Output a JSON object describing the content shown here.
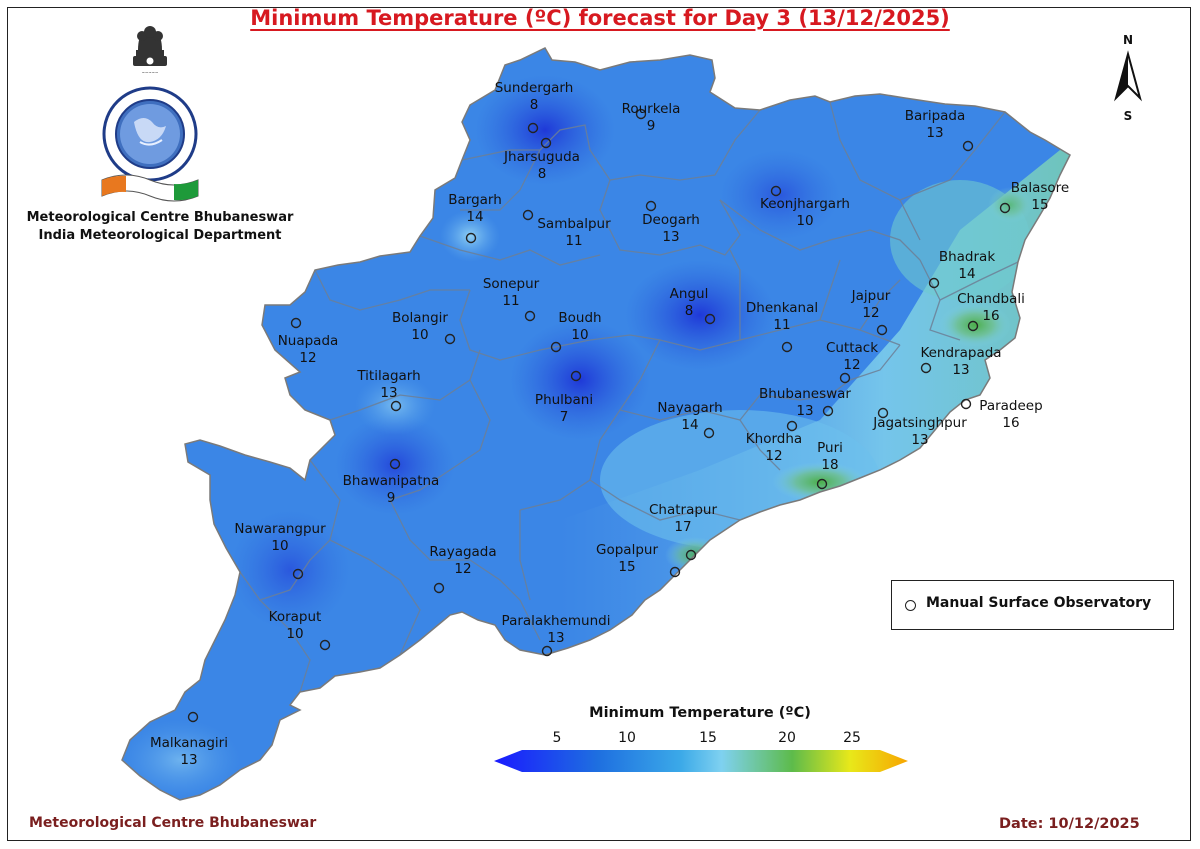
{
  "title": "Minimum Temperature (ºC) forecast for Day 3 (13/12/2025)",
  "organization": {
    "line1": "Meteorological Centre Bhubaneswar",
    "line2": "India Meteorological Department",
    "emblem_icon": "imd-emblem-icon"
  },
  "compass": {
    "north": "N",
    "south": "S"
  },
  "stations": [
    {
      "name": "Sundergarh",
      "value": "8"
    },
    {
      "name": "Rourkela",
      "value": "9"
    },
    {
      "name": "Jharsuguda",
      "value": "8"
    },
    {
      "name": "Baripada",
      "value": "13"
    },
    {
      "name": "Bargarh",
      "value": "14"
    },
    {
      "name": "Sambalpur",
      "value": "11"
    },
    {
      "name": "Deogarh",
      "value": "13"
    },
    {
      "name": "Keonjhargarh",
      "value": "10"
    },
    {
      "name": "Balasore",
      "value": "15"
    },
    {
      "name": "Bhadrak",
      "value": "14"
    },
    {
      "name": "Sonepur",
      "value": "11"
    },
    {
      "name": "Angul",
      "value": "8"
    },
    {
      "name": "Dhenkanal",
      "value": "11"
    },
    {
      "name": "Jajpur",
      "value": "12"
    },
    {
      "name": "Chandbali",
      "value": "16"
    },
    {
      "name": "Bolangir",
      "value": "10"
    },
    {
      "name": "Boudh",
      "value": "10"
    },
    {
      "name": "Nuapada",
      "value": "12"
    },
    {
      "name": "Cuttack",
      "value": "12"
    },
    {
      "name": "Kendrapada",
      "value": "13"
    },
    {
      "name": "Titilagarh",
      "value": "13"
    },
    {
      "name": "Phulbani",
      "value": "7"
    },
    {
      "name": "Bhubaneswar",
      "value": "13"
    },
    {
      "name": "Paradeep",
      "value": "16"
    },
    {
      "name": "Nayagarh",
      "value": "14"
    },
    {
      "name": "Jagatsinghpur",
      "value": "13"
    },
    {
      "name": "Khordha",
      "value": "12"
    },
    {
      "name": "Puri",
      "value": "18"
    },
    {
      "name": "Bhawanipatna",
      "value": "9"
    },
    {
      "name": "Chatrapur",
      "value": "17"
    },
    {
      "name": "Nawarangpur",
      "value": "10"
    },
    {
      "name": "Rayagada",
      "value": "12"
    },
    {
      "name": "Gopalpur",
      "value": "15"
    },
    {
      "name": "Koraput",
      "value": "10"
    },
    {
      "name": "Paralakhemundi",
      "value": "13"
    },
    {
      "name": "Malkanagiri",
      "value": "13"
    }
  ],
  "legend": {
    "marker_label": "Manual Surface Observatory"
  },
  "colorbar": {
    "title": "Minimum Temperature (ºC)",
    "ticks": [
      "5",
      "10",
      "15",
      "20",
      "25"
    ],
    "colors": [
      "#1a1aff",
      "#1e6fe0",
      "#3ba9e8",
      "#7fd1f0",
      "#5dbb4b",
      "#e8e81a",
      "#f7a500"
    ]
  },
  "footer": {
    "left": "Meteorological Centre Bhubaneswar",
    "right": "Date: 10/12/2025"
  },
  "chart_data": {
    "type": "heatmap",
    "title": "Minimum Temperature (ºC) forecast for Day 3 (13/12/2025)",
    "colorbar_range": [
      5,
      25
    ],
    "points": [
      {
        "station": "Sundergarh",
        "value": 8
      },
      {
        "station": "Rourkela",
        "value": 9
      },
      {
        "station": "Jharsuguda",
        "value": 8
      },
      {
        "station": "Baripada",
        "value": 13
      },
      {
        "station": "Bargarh",
        "value": 14
      },
      {
        "station": "Sambalpur",
        "value": 11
      },
      {
        "station": "Deogarh",
        "value": 13
      },
      {
        "station": "Keonjhargarh",
        "value": 10
      },
      {
        "station": "Balasore",
        "value": 15
      },
      {
        "station": "Bhadrak",
        "value": 14
      },
      {
        "station": "Sonepur",
        "value": 11
      },
      {
        "station": "Angul",
        "value": 8
      },
      {
        "station": "Dhenkanal",
        "value": 11
      },
      {
        "station": "Jajpur",
        "value": 12
      },
      {
        "station": "Chandbali",
        "value": 16
      },
      {
        "station": "Bolangir",
        "value": 10
      },
      {
        "station": "Boudh",
        "value": 10
      },
      {
        "station": "Nuapada",
        "value": 12
      },
      {
        "station": "Cuttack",
        "value": 12
      },
      {
        "station": "Kendrapada",
        "value": 13
      },
      {
        "station": "Titilagarh",
        "value": 13
      },
      {
        "station": "Phulbani",
        "value": 7
      },
      {
        "station": "Bhubaneswar",
        "value": 13
      },
      {
        "station": "Paradeep",
        "value": 16
      },
      {
        "station": "Nayagarh",
        "value": 14
      },
      {
        "station": "Jagatsinghpur",
        "value": 13
      },
      {
        "station": "Khordha",
        "value": 12
      },
      {
        "station": "Puri",
        "value": 18
      },
      {
        "station": "Bhawanipatna",
        "value": 9
      },
      {
        "station": "Chatrapur",
        "value": 17
      },
      {
        "station": "Nawarangpur",
        "value": 10
      },
      {
        "station": "Rayagada",
        "value": 12
      },
      {
        "station": "Gopalpur",
        "value": 15
      },
      {
        "station": "Koraput",
        "value": 10
      },
      {
        "station": "Paralakhemundi",
        "value": 13
      },
      {
        "station": "Malkanagiri",
        "value": 13
      }
    ]
  }
}
